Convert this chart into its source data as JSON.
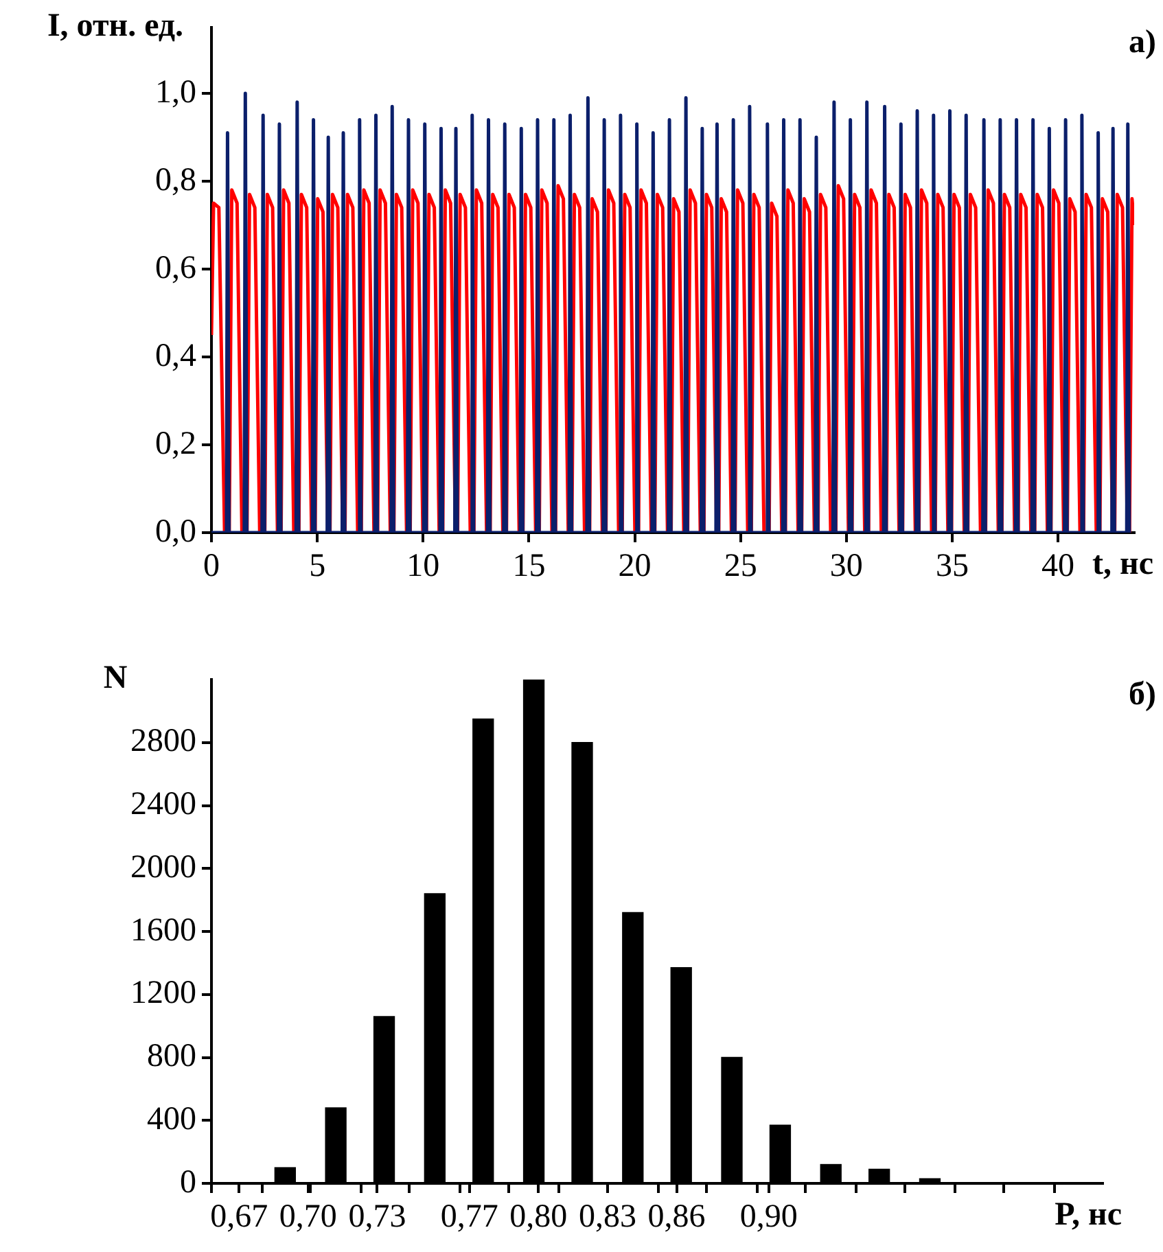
{
  "chart_data": [
    {
      "type": "line",
      "ylabel": "I, отн. ед.",
      "xlabel": "t, нс",
      "annotations": [
        "а)"
      ],
      "xlim": [
        0,
        43.6
      ],
      "xticks": [
        0,
        5,
        10,
        15,
        20,
        25,
        30,
        35,
        40
      ],
      "ylim": [
        0,
        1.15
      ],
      "yticks": [
        {
          "value": 0,
          "label": "0,0"
        },
        {
          "value": 0.2,
          "label": "0,2"
        },
        {
          "value": 0.4,
          "label": "0,4"
        },
        {
          "value": 0.6,
          "label": "0,6"
        },
        {
          "value": 0.8,
          "label": "0,8"
        },
        {
          "value": 1,
          "label": "1,0"
        }
      ],
      "series": [
        {
          "color": "#ff0000",
          "x": [
            0,
            0.1,
            0.35,
            0.62,
            0.84,
            0.96,
            1.21,
            1.44,
            1.68,
            1.8,
            2.05,
            2.28,
            2.52,
            2.64,
            2.89,
            3.12,
            3.29,
            3.41,
            3.66,
            3.89,
            4.13,
            4.25,
            4.5,
            4.73,
            4.9,
            5.02,
            5.27,
            5.5,
            5.6,
            5.72,
            5.97,
            6.2,
            6.31,
            6.43,
            6.68,
            6.91,
            7.08,
            7.2,
            7.45,
            7.68,
            7.85,
            7.97,
            8.22,
            8.45,
            8.62,
            8.74,
            8.99,
            9.22,
            9.39,
            9.51,
            9.76,
            9.99,
            10.16,
            10.28,
            10.53,
            10.76,
            10.93,
            11.05,
            11.3,
            11.53,
            11.63,
            11.75,
            12,
            12.23,
            12.4,
            12.52,
            12.77,
            13,
            13.17,
            13.29,
            13.54,
            13.77,
            13.94,
            14.06,
            14.31,
            14.54,
            14.72,
            14.84,
            15.09,
            15.32,
            15.49,
            15.61,
            15.86,
            16.09,
            16.26,
            16.38,
            16.63,
            16.86,
            17.03,
            17.15,
            17.4,
            17.63,
            17.87,
            17.99,
            18.24,
            18.47,
            18.64,
            18.76,
            19.01,
            19.24,
            19.41,
            19.53,
            19.78,
            20.01,
            20.18,
            20.3,
            20.55,
            20.78,
            20.95,
            21.07,
            21.32,
            21.55,
            21.72,
            21.84,
            22.09,
            22.32,
            22.5,
            22.62,
            22.87,
            23.1,
            23.27,
            23.39,
            23.64,
            23.87,
            23.97,
            24.09,
            24.34,
            24.57,
            24.74,
            24.86,
            25.11,
            25.34,
            25.51,
            25.63,
            25.88,
            26.11,
            26.35,
            26.47,
            26.72,
            26.95,
            27.12,
            27.24,
            27.49,
            27.72,
            27.89,
            28.01,
            28.26,
            28.49,
            28.66,
            28.78,
            29.03,
            29.26,
            29.5,
            29.62,
            29.87,
            30.1,
            30.27,
            30.39,
            30.64,
            30.87,
            31.05,
            31.17,
            31.42,
            31.65,
            31.89,
            32.01,
            32.26,
            32.49,
            32.66,
            32.78,
            33.03,
            33.26,
            33.43,
            33.55,
            33.8,
            34.03,
            34.2,
            34.32,
            34.57,
            34.8,
            34.97,
            35.09,
            35.34,
            35.57,
            35.74,
            35.86,
            36.11,
            36.34,
            36.58,
            36.7,
            36.95,
            37.18,
            37.35,
            37.47,
            37.72,
            37.95,
            38.12,
            38.24,
            38.49,
            38.72,
            38.9,
            39.02,
            39.27,
            39.5,
            39.67,
            39.79,
            40.04,
            40.27,
            40.44,
            40.56,
            40.81,
            41.04,
            41.21,
            41.33,
            41.58,
            41.81,
            41.98,
            42.1,
            42.35,
            42.58,
            42.68,
            42.8,
            43.05,
            43.28,
            43.38,
            43.5,
            43.6
          ],
          "values": [
            0.45,
            0.75,
            0.74,
            0,
            0,
            0.78,
            0.75,
            0,
            0,
            0.77,
            0.74,
            0,
            0,
            0.77,
            0.74,
            0,
            0,
            0.78,
            0.75,
            0,
            0,
            0.77,
            0.74,
            0,
            0,
            0.76,
            0.73,
            0,
            0,
            0.77,
            0.74,
            0,
            0,
            0.77,
            0.74,
            0,
            0,
            0.78,
            0.75,
            0,
            0,
            0.78,
            0.75,
            0,
            0,
            0.77,
            0.74,
            0,
            0,
            0.78,
            0.75,
            0,
            0,
            0.77,
            0.74,
            0,
            0,
            0.78,
            0.75,
            0,
            0,
            0.77,
            0.74,
            0,
            0,
            0.78,
            0.75,
            0,
            0,
            0.77,
            0.74,
            0,
            0,
            0.77,
            0.74,
            0,
            0,
            0.77,
            0.74,
            0,
            0,
            0.78,
            0.75,
            0,
            0,
            0.79,
            0.76,
            0,
            0,
            0.77,
            0.74,
            0,
            0,
            0.76,
            0.73,
            0,
            0,
            0.78,
            0.75,
            0,
            0,
            0.77,
            0.74,
            0,
            0,
            0.78,
            0.75,
            0,
            0,
            0.77,
            0.74,
            0,
            0,
            0.76,
            0.73,
            0,
            0,
            0.78,
            0.75,
            0,
            0,
            0.77,
            0.74,
            0,
            0,
            0.76,
            0.73,
            0,
            0,
            0.78,
            0.75,
            0,
            0,
            0.77,
            0.74,
            0,
            0,
            0.75,
            0.72,
            0,
            0,
            0.78,
            0.75,
            0,
            0,
            0.76,
            0.73,
            0,
            0,
            0.77,
            0.74,
            0,
            0,
            0.79,
            0.76,
            0,
            0,
            0.77,
            0.74,
            0,
            0,
            0.78,
            0.75,
            0,
            0,
            0.77,
            0.74,
            0,
            0,
            0.77,
            0.74,
            0,
            0,
            0.78,
            0.75,
            0,
            0,
            0.77,
            0.74,
            0,
            0,
            0.77,
            0.74,
            0,
            0,
            0.77,
            0.74,
            0,
            0,
            0.78,
            0.75,
            0,
            0,
            0.77,
            0.74,
            0,
            0,
            0.77,
            0.74,
            0,
            0,
            0.77,
            0.74,
            0,
            0,
            0.78,
            0.75,
            0,
            0,
            0.76,
            0.73,
            0,
            0,
            0.77,
            0.74,
            0,
            0,
            0.76,
            0.73,
            0,
            0,
            0.77,
            0.74,
            0,
            0,
            0.76,
            0.7
          ]
        },
        {
          "color": "#0b1f6b",
          "x": [
            0,
            0.71,
            0.76,
            0.83,
            1.55,
            1.6,
            1.67,
            2.39,
            2.44,
            2.51,
            3.16,
            3.21,
            3.28,
            4,
            4.05,
            4.12,
            4.77,
            4.82,
            4.89,
            5.47,
            5.52,
            5.59,
            6.18,
            6.23,
            6.3,
            6.95,
            7,
            7.07,
            7.72,
            7.77,
            7.84,
            8.49,
            8.54,
            8.61,
            9.26,
            9.31,
            9.38,
            10.03,
            10.08,
            10.15,
            10.8,
            10.85,
            10.92,
            11.5,
            11.55,
            11.62,
            12.27,
            12.32,
            12.39,
            13.04,
            13.09,
            13.16,
            13.81,
            13.86,
            13.93,
            14.59,
            14.64,
            14.71,
            15.36,
            15.41,
            15.48,
            16.13,
            16.18,
            16.25,
            16.9,
            16.95,
            17.02,
            17.74,
            17.79,
            17.86,
            18.51,
            18.56,
            18.63,
            19.28,
            19.33,
            19.4,
            20.05,
            20.1,
            20.17,
            20.82,
            20.87,
            20.94,
            21.59,
            21.64,
            21.71,
            22.37,
            22.42,
            22.49,
            23.14,
            23.19,
            23.26,
            23.84,
            23.89,
            23.96,
            24.61,
            24.66,
            24.73,
            25.38,
            25.43,
            25.5,
            26.22,
            26.27,
            26.34,
            26.99,
            27.04,
            27.11,
            27.76,
            27.81,
            27.88,
            28.53,
            28.58,
            28.65,
            29.37,
            29.42,
            29.49,
            30.14,
            30.19,
            30.26,
            30.92,
            30.97,
            31.04,
            31.76,
            31.81,
            31.88,
            32.53,
            32.58,
            32.65,
            33.3,
            33.35,
            33.42,
            34.07,
            34.12,
            34.19,
            34.84,
            34.89,
            34.96,
            35.61,
            35.66,
            35.73,
            36.45,
            36.5,
            36.57,
            37.22,
            37.27,
            37.34,
            37.99,
            38.04,
            38.11,
            38.77,
            38.82,
            38.89,
            39.54,
            39.59,
            39.66,
            40.31,
            40.36,
            40.43,
            41.08,
            41.13,
            41.2,
            41.85,
            41.9,
            41.97,
            42.55,
            42.6,
            42.67,
            43.25,
            43.3,
            43.37
          ],
          "values": [
            0,
            0,
            0.91,
            0,
            0,
            1,
            0,
            0,
            0.95,
            0,
            0,
            0.93,
            0,
            0,
            0.98,
            0,
            0,
            0.94,
            0,
            0,
            0.9,
            0,
            0,
            0.91,
            0,
            0,
            0.94,
            0,
            0,
            0.95,
            0,
            0,
            0.97,
            0,
            0,
            0.94,
            0,
            0,
            0.93,
            0,
            0,
            0.92,
            0,
            0,
            0.92,
            0,
            0,
            0.95,
            0,
            0,
            0.94,
            0,
            0,
            0.93,
            0,
            0,
            0.92,
            0,
            0,
            0.94,
            0,
            0,
            0.94,
            0,
            0,
            0.95,
            0,
            0,
            0.99,
            0,
            0,
            0.94,
            0,
            0,
            0.95,
            0,
            0,
            0.93,
            0,
            0,
            0.91,
            0,
            0,
            0.94,
            0,
            0,
            0.99,
            0,
            0,
            0.92,
            0,
            0,
            0.93,
            0,
            0,
            0.94,
            0,
            0,
            0.97,
            0,
            0,
            0.93,
            0,
            0,
            0.94,
            0,
            0,
            0.94,
            0,
            0,
            0.9,
            0,
            0,
            0.98,
            0,
            0,
            0.94,
            0,
            0,
            0.98,
            0,
            0,
            0.97,
            0,
            0,
            0.93,
            0,
            0,
            0.96,
            0,
            0,
            0.95,
            0,
            0,
            0.96,
            0,
            0,
            0.95,
            0,
            0,
            0.94,
            0,
            0,
            0.94,
            0,
            0,
            0.94,
            0,
            0,
            0.94,
            0,
            0,
            0.92,
            0,
            0,
            0.94,
            0,
            0,
            0.95,
            0,
            0,
            0.91,
            0,
            0,
            0.92,
            0,
            0,
            0.93,
            0
          ]
        }
      ]
    },
    {
      "type": "bar",
      "ylabel": "N",
      "xlabel": "P, нс",
      "annotations": [
        "б)"
      ],
      "color": "#000000",
      "x": [
        0.69,
        0.712,
        0.733,
        0.755,
        0.776,
        0.798,
        0.819,
        0.841,
        0.862,
        0.884,
        0.905,
        0.927,
        0.948,
        0.97
      ],
      "values": [
        100,
        480,
        1060,
        1840,
        2950,
        3200,
        2800,
        1720,
        1370,
        800,
        370,
        120,
        90,
        30
      ],
      "ylim": [
        0,
        3200
      ],
      "yticks": [
        0,
        400,
        800,
        1200,
        1600,
        2000,
        2400,
        2800
      ],
      "xlim": [
        0.658,
        1.045
      ],
      "xticks": [
        {
          "value": 0.658,
          "label": null
        },
        {
          "value": 0.67,
          "label": "0,67"
        },
        {
          "value": 0.68,
          "label": null
        },
        {
          "value": 0.701,
          "label": null
        },
        {
          "value": 0.7,
          "label": "0,70"
        },
        {
          "value": 0.723,
          "label": null
        },
        {
          "value": 0.73,
          "label": "0,73"
        },
        {
          "value": 0.744,
          "label": null
        },
        {
          "value": 0.766,
          "label": null
        },
        {
          "value": 0.77,
          "label": "0,77"
        },
        {
          "value": 0.787,
          "label": null
        },
        {
          "value": 0.8,
          "label": "0,80"
        },
        {
          "value": 0.809,
          "label": null
        },
        {
          "value": 0.83,
          "label": null
        },
        {
          "value": 0.83,
          "label": "0,83"
        },
        {
          "value": 0.852,
          "label": null
        },
        {
          "value": 0.86,
          "label": "0,86"
        },
        {
          "value": 0.873,
          "label": null
        },
        {
          "value": 0.895,
          "label": null
        },
        {
          "value": 0.9,
          "label": "0,90"
        },
        {
          "value": 0.916,
          "label": null
        },
        {
          "value": 0.938,
          "label": null
        },
        {
          "value": 0.959,
          "label": null
        },
        {
          "value": 0.981,
          "label": null
        },
        {
          "value": 1.002,
          "label": null
        },
        {
          "value": 1.024,
          "label": null
        }
      ]
    }
  ]
}
